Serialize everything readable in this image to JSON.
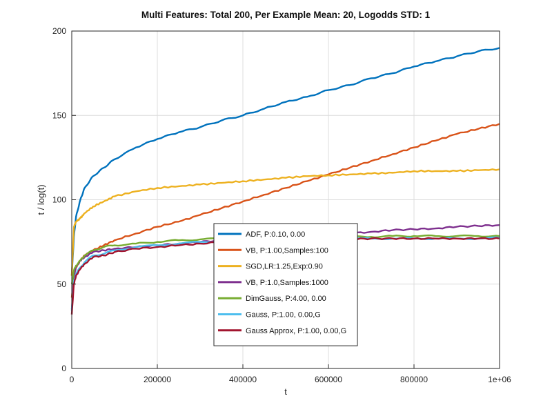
{
  "chart_data": {
    "type": "line",
    "title": "Multi Features: Total 200, Per Example Mean: 20, Logodds STD: 1",
    "xlabel": "t",
    "ylabel": "t / log(t)",
    "xlim": [
      0,
      1000000
    ],
    "ylim": [
      0,
      200
    ],
    "x_ticks": [
      0,
      200000,
      400000,
      600000,
      800000,
      1000000
    ],
    "x_tick_labels": [
      "0",
      "200000",
      "400000",
      "600000",
      "800000",
      "1e+06"
    ],
    "y_ticks": [
      0,
      50,
      100,
      150,
      200
    ],
    "y_tick_labels": [
      "0",
      "50",
      "100",
      "150",
      "200"
    ],
    "grid": true,
    "legend_position": "center-bottom",
    "x": [
      0,
      5000,
      10000,
      20000,
      30000,
      50000,
      75000,
      100000,
      150000,
      200000,
      250000,
      300000,
      350000,
      400000,
      450000,
      500000,
      550000,
      600000,
      650000,
      700000,
      750000,
      800000,
      850000,
      900000,
      950000,
      1000000
    ],
    "series": [
      {
        "name": "ADF, P:0.10, 0.00",
        "color": "#0072BD",
        "values": [
          55,
          78,
          90,
          100,
          107,
          114,
          119,
          124,
          131,
          136,
          140,
          143,
          147,
          150,
          154,
          158,
          161,
          165,
          168,
          172,
          175,
          179,
          182,
          185,
          188,
          190
        ]
      },
      {
        "name": "VB, P:1.00,Samples:100",
        "color": "#D95319",
        "values": [
          42,
          55,
          60,
          64,
          67,
          70,
          73,
          76,
          80,
          84,
          87,
          91,
          95,
          99,
          103,
          107,
          111,
          115,
          119,
          123,
          127,
          131,
          135,
          139,
          142,
          145
        ]
      },
      {
        "name": "SGD,LR:1.25,Exp:0.90",
        "color": "#EDB120",
        "values": [
          55,
          84,
          87,
          89,
          92,
          96,
          99,
          102,
          105,
          107,
          108,
          109,
          110,
          111,
          112,
          113,
          114,
          114.5,
          115,
          115.5,
          116,
          117,
          117,
          117,
          117.5,
          118
        ]
      },
      {
        "name": "VB, P:1.0,Samples:1000",
        "color": "#7E2F8E",
        "values": [
          35,
          55,
          60,
          64,
          66,
          69,
          70,
          71,
          72,
          73,
          74,
          75,
          76,
          77,
          77.5,
          78,
          79,
          79.5,
          80,
          81,
          82,
          82.5,
          83,
          84,
          84.5,
          85
        ]
      },
      {
        "name": "DimGauss, P:4.00, 0.00",
        "color": "#77AC30",
        "values": [
          50,
          58,
          61,
          64,
          67,
          70,
          72,
          73,
          74,
          75,
          76,
          76.5,
          77,
          77,
          77.5,
          78,
          78,
          78,
          78,
          78,
          78.5,
          78.5,
          78.5,
          78.5,
          78.5,
          78.5
        ]
      },
      {
        "name": "Gauss, P:1.00, 0.00,G",
        "color": "#4DBEEE",
        "values": [
          34,
          52,
          56,
          60,
          63,
          67,
          68,
          70,
          72,
          73,
          74,
          75,
          75.5,
          76,
          76,
          76.5,
          76.5,
          76.5,
          77,
          77,
          77,
          77,
          77,
          77,
          77,
          77.5
        ]
      },
      {
        "name": "Gauss Approx, P:1.00, 0.00,G",
        "color": "#A2142F",
        "values": [
          32,
          50,
          55,
          59,
          62,
          66,
          67,
          69,
          71,
          72,
          73,
          74,
          75,
          75.5,
          76,
          76,
          76.5,
          76.5,
          76.5,
          77,
          77,
          77,
          77,
          77,
          77,
          77
        ]
      }
    ]
  }
}
